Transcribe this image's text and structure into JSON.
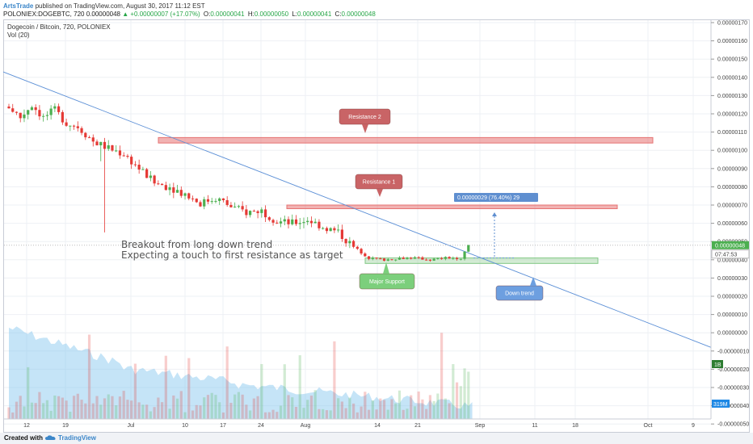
{
  "header": {
    "author": "ArtsTrade",
    "published_text": " published on TradingView.com, August 30, 2017 11:12 EST",
    "symbol_line": "POLONIEX:DOGEBTC, 720",
    "close_value": "0.00000048",
    "change_text": "▲ +0.00000007 (+17.07%)",
    "o_label": "O:",
    "o_value": "0.00000041",
    "h_label": "H:",
    "h_value": "0.00000050",
    "l_label": "L:",
    "l_value": "0.00000041",
    "c_label": "C:",
    "c_value": "0.00000048"
  },
  "legend": {
    "title": "Dogecoin / Bitcoin, 720, POLONIEX",
    "vol": "Vol (20)"
  },
  "price_labels": {
    "last": "0.00000048",
    "countdown": "07:47:53",
    "vol_a": "1B",
    "vol_b": "319M"
  },
  "annotations": {
    "resistance2": "Resistance 2",
    "resistance1": "Resistance 1",
    "major_support": "Major Support",
    "down_trend": "Down trend",
    "measure": "0.00000029 (76.40%) 29",
    "note_line1": "Breakout from long down trend",
    "note_line2": "Expecting a touch to first resistance as target"
  },
  "colors": {
    "up": "#4caf50",
    "down": "#e53935",
    "resistance": "#e57373",
    "support": "#81c784",
    "trendline": "#5b8fd6",
    "volume_area": "#7fc4ee",
    "label_red": "#c96466",
    "label_green": "#7ccf7c",
    "label_blue": "#6d9fe0",
    "measure_blue": "#5f8fd0"
  },
  "chart_data": {
    "type": "candlestick",
    "title": "Dogecoin / Bitcoin, 720, POLONIEX",
    "x_ticks": [
      "12",
      "19",
      "Jul",
      "10",
      "17",
      "24",
      "Aug",
      "14",
      "21",
      "Sep",
      "11",
      "18",
      "Oct",
      "9"
    ],
    "y_ticks": [
      "0.00000170",
      "0.00000160",
      "0.00000150",
      "0.00000140",
      "0.00000130",
      "0.00000120",
      "0.00000110",
      "0.00000100",
      "0.00000090",
      "0.00000080",
      "0.00000070",
      "0.00000060",
      "0.00000050",
      "0.00000040",
      "0.00000030",
      "0.00000020",
      "0.00000010",
      "0.00000000",
      "-0.00000010",
      "-0.00000020",
      "-0.00000030",
      "-0.00000040",
      "-0.00000050"
    ],
    "ylim": [
      -5e-07,
      1.7e-06
    ],
    "price_path": [
      {
        "x": 0,
        "y": 1.24e-06
      },
      {
        "x": 3,
        "y": 1.18e-06
      },
      {
        "x": 6,
        "y": 1.25e-06
      },
      {
        "x": 9,
        "y": 1.18e-06
      },
      {
        "x": 12,
        "y": 1.22e-06
      },
      {
        "x": 15,
        "y": 1.15e-06
      },
      {
        "x": 18,
        "y": 1.13e-06
      },
      {
        "x": 22,
        "y": 1.05e-06
      },
      {
        "x": 26,
        "y": 1.01e-06
      },
      {
        "x": 30,
        "y": 9.8e-07
      },
      {
        "x": 34,
        "y": 9e-07
      },
      {
        "x": 38,
        "y": 8.2e-07
      },
      {
        "x": 42,
        "y": 8e-07
      },
      {
        "x": 46,
        "y": 7.6e-07
      },
      {
        "x": 50,
        "y": 7.1e-07
      },
      {
        "x": 54,
        "y": 7.4e-07
      },
      {
        "x": 58,
        "y": 6.9e-07
      },
      {
        "x": 62,
        "y": 6.6e-07
      },
      {
        "x": 66,
        "y": 6.7e-07
      },
      {
        "x": 70,
        "y": 6.1e-07
      },
      {
        "x": 74,
        "y": 6e-07
      },
      {
        "x": 78,
        "y": 6.2e-07
      },
      {
        "x": 82,
        "y": 5.8e-07
      },
      {
        "x": 86,
        "y": 5.5e-07
      },
      {
        "x": 90,
        "y": 4.7e-07
      },
      {
        "x": 94,
        "y": 4.1e-07
      },
      {
        "x": 98,
        "y": 4e-07
      },
      {
        "x": 102,
        "y": 4.1e-07
      },
      {
        "x": 106,
        "y": 4.1e-07
      },
      {
        "x": 110,
        "y": 4e-07
      },
      {
        "x": 114,
        "y": 4.1e-07
      },
      {
        "x": 118,
        "y": 4.1e-07
      },
      {
        "x": 120,
        "y": 4.8e-07
      }
    ],
    "resistance_levels": [
      {
        "name": "Resistance 2",
        "low": 1.04e-06,
        "high": 1.07e-06
      },
      {
        "name": "Resistance 1",
        "low": 6.8e-07,
        "high": 7e-07
      }
    ],
    "support_levels": [
      {
        "name": "Major Support",
        "low": 3.8e-07,
        "high": 4.1e-07
      }
    ],
    "trendline": {
      "name": "Down trend",
      "from": {
        "x": 0,
        "y": 1.43e-06
      },
      "to": {
        "x": 180,
        "y": -8e-08
      }
    },
    "measure": {
      "value": 2.9e-07,
      "percent": 76.4,
      "bars": 29
    },
    "volume_series": "Vol (20)",
    "grid": true
  }
}
